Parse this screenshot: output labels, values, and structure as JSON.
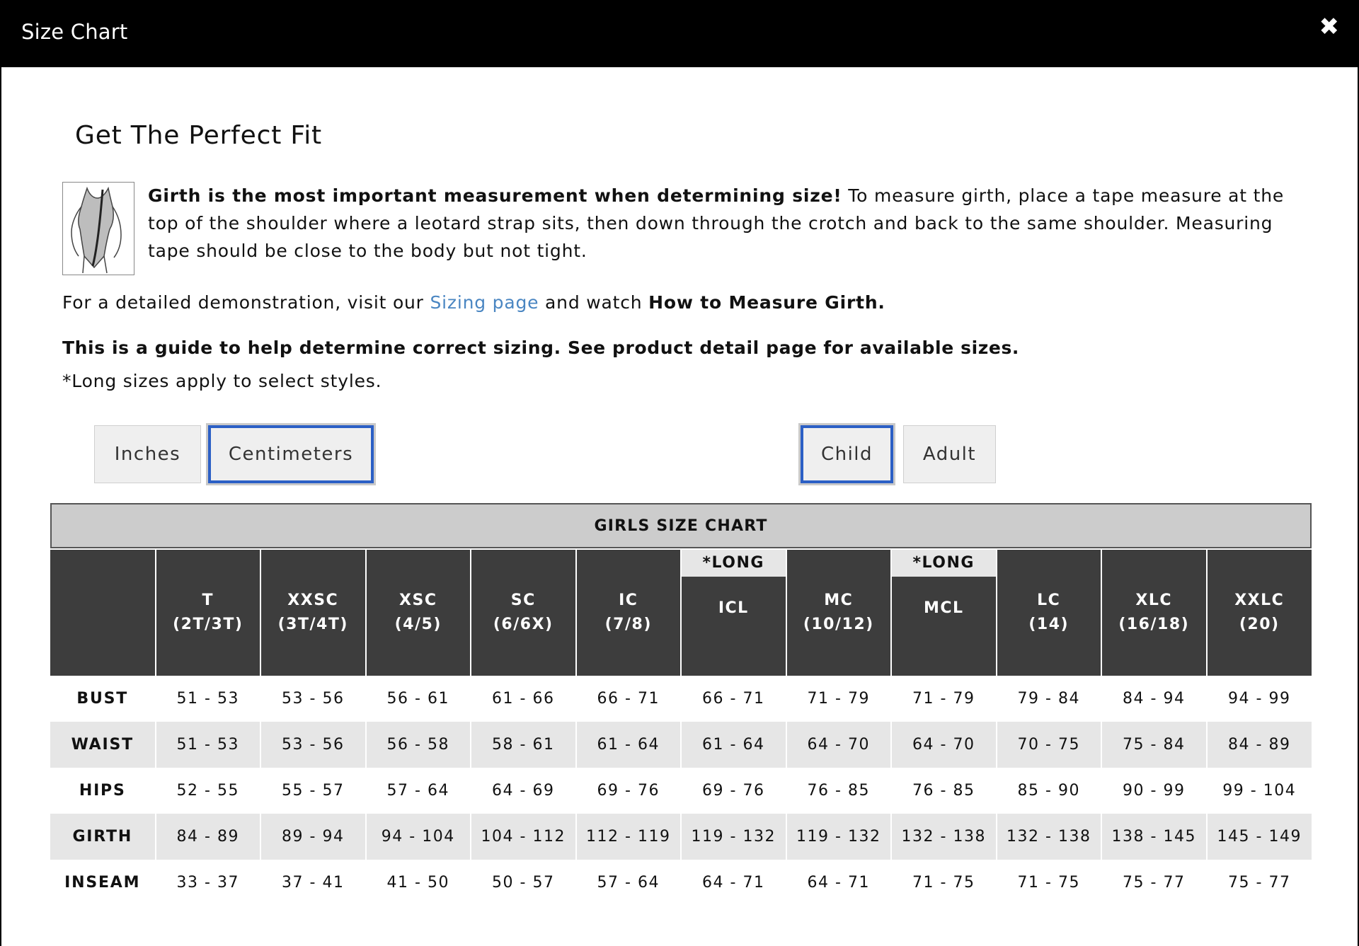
{
  "header": {
    "title": "Size Chart",
    "close_icon": "✖"
  },
  "intro": {
    "heading": "Get The Perfect Fit",
    "girth_bold": "Girth is the most important measurement when determining size!",
    "girth_text": " To measure girth, place a tape measure at the top of the shoulder where a leotard strap sits, then down through the crotch and back to the same shoulder. Measuring tape should be close to the body but not tight.",
    "demo_prefix": "For a detailed demonstration, visit our ",
    "demo_link": "Sizing page",
    "demo_middle": " and watch ",
    "demo_bold": "How to Measure Girth.",
    "guide": "This is a guide to help determine correct sizing. See product detail page for available sizes.",
    "long_note": "*Long sizes apply to select styles."
  },
  "unit_buttons": {
    "inches": "Inches",
    "centimeters": "Centimeters",
    "selected": "centimeters"
  },
  "group_buttons": {
    "child": "Child",
    "adult": "Adult",
    "selected": "child"
  },
  "chart": {
    "title": "GIRLS SIZE CHART",
    "columns": [
      {
        "tag": "",
        "name": "T",
        "sub": "(2T/3T)"
      },
      {
        "tag": "",
        "name": "XXSC",
        "sub": "(3T/4T)"
      },
      {
        "tag": "",
        "name": "XSC",
        "sub": "(4/5)"
      },
      {
        "tag": "",
        "name": "SC",
        "sub": "(6/6X)"
      },
      {
        "tag": "",
        "name": "IC",
        "sub": "(7/8)"
      },
      {
        "tag": "*LONG",
        "name": "ICL",
        "sub": ""
      },
      {
        "tag": "",
        "name": "MC",
        "sub": "(10/12)"
      },
      {
        "tag": "*LONG",
        "name": "MCL",
        "sub": ""
      },
      {
        "tag": "",
        "name": "LC",
        "sub": "(14)"
      },
      {
        "tag": "",
        "name": "XLC",
        "sub": "(16/18)"
      },
      {
        "tag": "",
        "name": "XXLC",
        "sub": "(20)"
      }
    ],
    "rows": [
      {
        "label": "BUST",
        "values": [
          "51 - 53",
          "53 - 56",
          "56 - 61",
          "61 - 66",
          "66 - 71",
          "66 - 71",
          "71 - 79",
          "71 - 79",
          "79 - 84",
          "84 - 94",
          "94 - 99"
        ]
      },
      {
        "label": "WAIST",
        "values": [
          "51 - 53",
          "53 - 56",
          "56 - 58",
          "58 - 61",
          "61 - 64",
          "61 - 64",
          "64 - 70",
          "64 - 70",
          "70 - 75",
          "75 - 84",
          "84 - 89"
        ]
      },
      {
        "label": "HIPS",
        "values": [
          "52 - 55",
          "55 - 57",
          "57 - 64",
          "64 - 69",
          "69 - 76",
          "69 - 76",
          "76 - 85",
          "76 - 85",
          "85 - 90",
          "90 - 99",
          "99 - 104"
        ]
      },
      {
        "label": "GIRTH",
        "values": [
          "84 - 89",
          "89 - 94",
          "94 - 104",
          "104 - 112",
          "112 - 119",
          "119 - 132",
          "119 - 132",
          "132 - 138",
          "132 - 138",
          "138 - 145",
          "145 - 149"
        ]
      },
      {
        "label": "INSEAM",
        "values": [
          "33 - 37",
          "37 - 41",
          "41 - 50",
          "50 - 57",
          "57 - 64",
          "64 - 71",
          "64 - 71",
          "71 - 75",
          "71 - 75",
          "75 - 77",
          "75 - 77"
        ]
      }
    ]
  }
}
